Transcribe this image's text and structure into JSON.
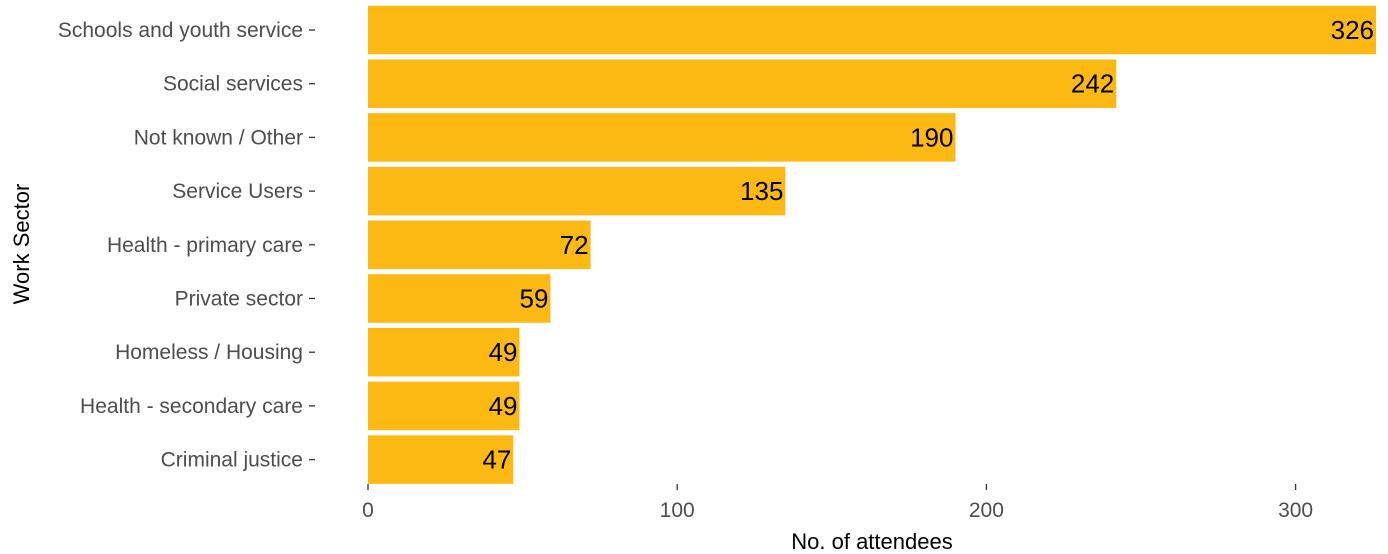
{
  "chart_data": {
    "type": "bar",
    "orientation": "horizontal",
    "categories": [
      "Schools and youth service",
      "Social services",
      "Not known / Other",
      "Service Users",
      "Health - primary care",
      "Private sector",
      "Homeless / Housing",
      "Health - secondary care",
      "Criminal justice"
    ],
    "values": [
      326,
      242,
      190,
      135,
      72,
      59,
      49,
      49,
      47
    ],
    "data_labels": [
      "326",
      "242",
      "190",
      "135",
      "72",
      "59",
      "49",
      "49",
      "47"
    ],
    "xlabel": "No. of attendees",
    "ylabel": "Work Sector",
    "xlim": [
      0,
      326
    ],
    "x_ticks": [
      0,
      100,
      200,
      300
    ],
    "x_tick_labels": [
      "0",
      "100",
      "200",
      "300"
    ],
    "grid": false,
    "legend": "none",
    "bar_color": "#FDB913"
  }
}
